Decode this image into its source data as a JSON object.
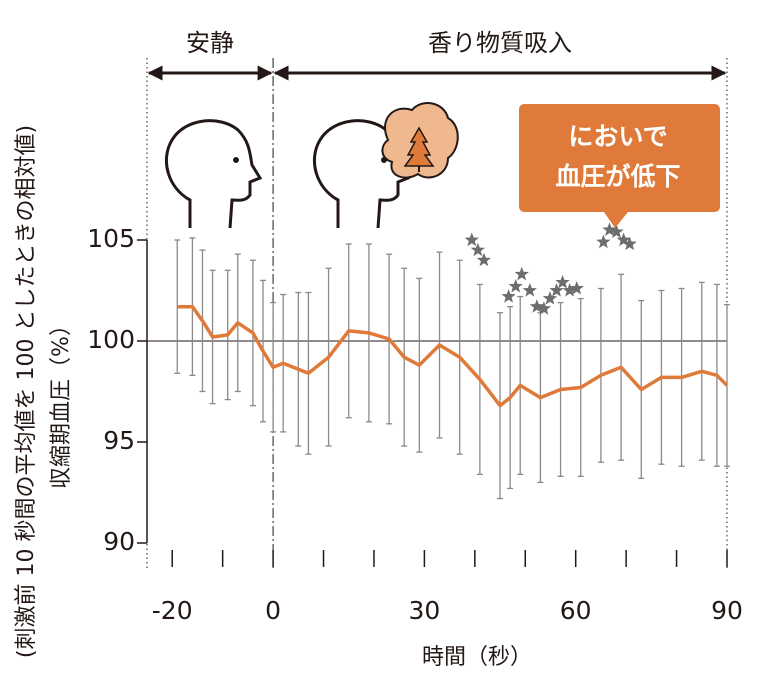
{
  "chart_data": {
    "type": "line",
    "xlabel": "時間（秒）",
    "ylabel": "収縮期血圧（%）",
    "ylabel_note": "(刺激前 10 秒間の平均値を 100 としたときの相対値)",
    "phases": [
      {
        "label": "安静",
        "range": [
          -25,
          0
        ]
      },
      {
        "label": "香り物質吸入",
        "range": [
          0,
          90
        ]
      }
    ],
    "callout": [
      "においで",
      "血圧が低下"
    ],
    "xlim": [
      -25,
      90
    ],
    "ylim": [
      90,
      105
    ],
    "xticks": [
      -20,
      0,
      30,
      60,
      90
    ],
    "xminor_ticks": [
      -10,
      10,
      20,
      40,
      50,
      70,
      80
    ],
    "yticks": [
      90,
      95,
      100,
      105
    ],
    "reference_y": 100,
    "x": [
      -19,
      -16,
      -14,
      -12,
      -9,
      -7,
      -4,
      -2,
      0,
      2,
      5,
      7,
      11,
      15,
      19,
      23,
      26,
      29,
      33,
      37,
      41,
      45,
      47,
      49,
      53,
      57,
      61,
      65,
      69,
      73,
      77,
      81,
      85,
      88,
      90
    ],
    "series": [
      {
        "color": "#e07a3a",
        "values": [
          101.7,
          101.7,
          101.0,
          100.2,
          100.3,
          100.9,
          100.4,
          99.5,
          98.7,
          98.9,
          98.6,
          98.4,
          99.2,
          100.5,
          100.4,
          100.1,
          99.2,
          98.8,
          99.8,
          99.2,
          98.1,
          96.8,
          97.2,
          97.8,
          97.2,
          97.6,
          97.7,
          98.3,
          98.7,
          97.6,
          98.2,
          98.2,
          98.5,
          98.3,
          97.8
        ],
        "errors": [
          3.3,
          3.4,
          3.5,
          3.3,
          3.2,
          3.4,
          3.6,
          3.5,
          3.2,
          3.4,
          3.8,
          4.0,
          4.4,
          4.3,
          4.4,
          4.2,
          4.4,
          4.3,
          4.6,
          4.8,
          4.7,
          4.6,
          4.5,
          4.4,
          4.2,
          4.3,
          4.4,
          4.3,
          4.6,
          4.4,
          4.3,
          4.4,
          4.4,
          4.5,
          4.0
        ],
        "error_color": "#8a8a8a"
      }
    ],
    "significance": {
      "color": "#6d6d6d",
      "x": [
        39.4,
        40.6,
        41.8,
        46.7,
        48.1,
        49.3,
        50.9,
        52.3,
        53.7,
        54.9,
        56.2,
        57.4,
        58.8,
        60.2,
        65.5,
        66.7,
        68.1,
        69.5,
        70.7
      ],
      "y": [
        105.0,
        104.5,
        104.0,
        102.2,
        102.7,
        103.3,
        102.5,
        101.7,
        101.6,
        102.1,
        102.5,
        102.9,
        102.5,
        102.6,
        104.9,
        105.5,
        105.4,
        105.0,
        104.8
      ]
    }
  }
}
